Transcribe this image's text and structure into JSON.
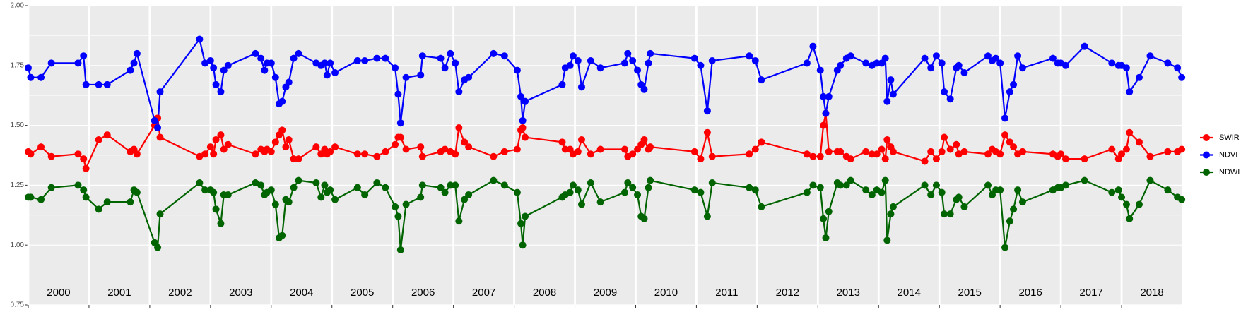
{
  "chart_data": {
    "type": "line",
    "legend": "right",
    "grid": true,
    "x": [
      2000.0,
      2000.04,
      2000.21,
      2000.38,
      2000.82,
      2000.91,
      2000.95,
      2001.16,
      2001.3,
      2001.68,
      2001.74,
      2001.79,
      2002.08,
      2002.13,
      2002.17,
      2002.82,
      2002.91,
      2003.0,
      2003.05,
      2003.09,
      2003.17,
      2003.22,
      2003.29,
      2003.74,
      2003.83,
      2003.89,
      2003.93,
      2004.0,
      2004.07,
      2004.13,
      2004.18,
      2004.24,
      2004.29,
      2004.37,
      2004.45,
      2004.74,
      2004.82,
      2004.88,
      2004.92,
      2004.97,
      2005.05,
      2005.42,
      2005.54,
      2005.74,
      2005.88,
      2006.04,
      2006.09,
      2006.13,
      2006.22,
      2006.46,
      2006.49,
      2006.79,
      2006.86,
      2006.95,
      2007.03,
      2007.09,
      2007.18,
      2007.25,
      2007.66,
      2007.84,
      2008.05,
      2008.11,
      2008.14,
      2008.18,
      2008.79,
      2008.84,
      2008.92,
      2008.97,
      2009.05,
      2009.11,
      2009.26,
      2009.42,
      2009.82,
      2009.87,
      2009.95,
      2010.03,
      2010.09,
      2010.14,
      2010.21,
      2010.24,
      2010.97,
      2011.07,
      2011.18,
      2011.26,
      2011.87,
      2011.97,
      2012.07,
      2012.82,
      2012.92,
      2013.04,
      2013.09,
      2013.13,
      2013.18,
      2013.32,
      2013.37,
      2013.47,
      2013.54,
      2013.79,
      2013.89,
      2013.97,
      2014.05,
      2014.11,
      2014.14,
      2014.2,
      2014.24,
      2014.76,
      2014.86,
      2014.95,
      2015.04,
      2015.08,
      2015.18,
      2015.28,
      2015.32,
      2015.41,
      2015.8,
      2015.87,
      2015.93,
      2016.0,
      2016.08,
      2016.16,
      2016.22,
      2016.29,
      2016.37,
      2016.87,
      2016.95,
      2017.0,
      2017.08,
      2017.39,
      2017.84,
      2017.95,
      2018.0,
      2018.08,
      2018.13,
      2018.29,
      2018.47,
      2018.76,
      2018.92,
      2018.99
    ],
    "series": [
      {
        "name": "SWIR",
        "color": "#ff0000",
        "values": [
          1.39,
          1.38,
          1.41,
          1.37,
          1.38,
          1.36,
          1.32,
          1.44,
          1.46,
          1.39,
          1.4,
          1.38,
          1.5,
          1.53,
          1.45,
          1.37,
          1.38,
          1.41,
          1.38,
          1.44,
          1.46,
          1.4,
          1.42,
          1.38,
          1.4,
          1.39,
          1.4,
          1.39,
          1.43,
          1.46,
          1.48,
          1.41,
          1.44,
          1.36,
          1.36,
          1.41,
          1.38,
          1.4,
          1.38,
          1.39,
          1.41,
          1.38,
          1.38,
          1.37,
          1.39,
          1.42,
          1.45,
          1.45,
          1.4,
          1.41,
          1.37,
          1.39,
          1.4,
          1.39,
          1.38,
          1.49,
          1.43,
          1.41,
          1.37,
          1.39,
          1.4,
          1.48,
          1.49,
          1.45,
          1.43,
          1.4,
          1.4,
          1.38,
          1.39,
          1.44,
          1.38,
          1.4,
          1.4,
          1.37,
          1.38,
          1.4,
          1.42,
          1.44,
          1.4,
          1.41,
          1.39,
          1.36,
          1.47,
          1.37,
          1.38,
          1.4,
          1.43,
          1.38,
          1.37,
          1.37,
          1.5,
          1.55,
          1.39,
          1.39,
          1.39,
          1.37,
          1.36,
          1.39,
          1.38,
          1.38,
          1.4,
          1.36,
          1.44,
          1.41,
          1.39,
          1.35,
          1.39,
          1.36,
          1.39,
          1.45,
          1.4,
          1.42,
          1.38,
          1.39,
          1.38,
          1.4,
          1.39,
          1.38,
          1.46,
          1.43,
          1.41,
          1.38,
          1.39,
          1.38,
          1.37,
          1.38,
          1.36,
          1.36,
          1.4,
          1.36,
          1.38,
          1.4,
          1.47,
          1.43,
          1.37,
          1.39,
          1.39,
          1.4
        ]
      },
      {
        "name": "NDVI",
        "color": "#0000ff",
        "values": [
          1.74,
          1.7,
          1.7,
          1.76,
          1.76,
          1.79,
          1.67,
          1.67,
          1.67,
          1.73,
          1.76,
          1.8,
          1.52,
          1.49,
          1.64,
          1.86,
          1.76,
          1.77,
          1.74,
          1.67,
          1.64,
          1.73,
          1.75,
          1.8,
          1.78,
          1.73,
          1.76,
          1.76,
          1.7,
          1.59,
          1.6,
          1.66,
          1.68,
          1.78,
          1.8,
          1.76,
          1.75,
          1.76,
          1.71,
          1.76,
          1.72,
          1.77,
          1.77,
          1.78,
          1.78,
          1.74,
          1.63,
          1.51,
          1.7,
          1.71,
          1.79,
          1.78,
          1.74,
          1.8,
          1.76,
          1.64,
          1.69,
          1.7,
          1.8,
          1.79,
          1.73,
          1.62,
          1.52,
          1.6,
          1.67,
          1.74,
          1.75,
          1.79,
          1.77,
          1.66,
          1.77,
          1.74,
          1.76,
          1.8,
          1.77,
          1.73,
          1.67,
          1.65,
          1.76,
          1.8,
          1.78,
          1.75,
          1.56,
          1.77,
          1.79,
          1.77,
          1.69,
          1.76,
          1.83,
          1.73,
          1.62,
          1.55,
          1.62,
          1.73,
          1.75,
          1.78,
          1.79,
          1.76,
          1.75,
          1.76,
          1.76,
          1.78,
          1.6,
          1.69,
          1.63,
          1.78,
          1.74,
          1.79,
          1.76,
          1.64,
          1.61,
          1.74,
          1.75,
          1.72,
          1.79,
          1.77,
          1.78,
          1.76,
          1.53,
          1.64,
          1.67,
          1.79,
          1.74,
          1.78,
          1.76,
          1.76,
          1.75,
          1.83,
          1.76,
          1.75,
          1.75,
          1.74,
          1.64,
          1.7,
          1.79,
          1.76,
          1.74,
          1.7
        ]
      },
      {
        "name": "NDWI",
        "color": "#006400",
        "values": [
          1.2,
          1.2,
          1.19,
          1.24,
          1.25,
          1.23,
          1.2,
          1.15,
          1.18,
          1.18,
          1.23,
          1.22,
          1.01,
          0.99,
          1.13,
          1.26,
          1.23,
          1.23,
          1.22,
          1.15,
          1.09,
          1.21,
          1.21,
          1.26,
          1.25,
          1.21,
          1.22,
          1.23,
          1.17,
          1.03,
          1.04,
          1.19,
          1.18,
          1.24,
          1.27,
          1.26,
          1.2,
          1.25,
          1.22,
          1.23,
          1.19,
          1.24,
          1.21,
          1.26,
          1.24,
          1.16,
          1.12,
          0.98,
          1.17,
          1.2,
          1.25,
          1.24,
          1.22,
          1.25,
          1.25,
          1.1,
          1.19,
          1.21,
          1.27,
          1.25,
          1.22,
          1.09,
          1.0,
          1.12,
          1.2,
          1.21,
          1.22,
          1.25,
          1.23,
          1.17,
          1.26,
          1.18,
          1.22,
          1.26,
          1.24,
          1.21,
          1.12,
          1.11,
          1.24,
          1.27,
          1.23,
          1.22,
          1.12,
          1.26,
          1.24,
          1.23,
          1.16,
          1.22,
          1.25,
          1.24,
          1.11,
          1.03,
          1.14,
          1.26,
          1.25,
          1.25,
          1.27,
          1.23,
          1.21,
          1.23,
          1.22,
          1.27,
          1.02,
          1.13,
          1.16,
          1.25,
          1.21,
          1.25,
          1.22,
          1.13,
          1.13,
          1.19,
          1.2,
          1.16,
          1.25,
          1.21,
          1.23,
          1.23,
          0.99,
          1.1,
          1.15,
          1.23,
          1.18,
          1.23,
          1.24,
          1.24,
          1.25,
          1.27,
          1.22,
          1.23,
          1.2,
          1.17,
          1.11,
          1.17,
          1.27,
          1.23,
          1.2,
          1.19
        ]
      }
    ],
    "xlim": [
      2000,
      2019
    ],
    "xticks": [
      {
        "value": 2000,
        "label": "2000"
      },
      {
        "value": 2001,
        "label": "2001"
      },
      {
        "value": 2002,
        "label": "2002"
      },
      {
        "value": 2003,
        "label": "2003"
      },
      {
        "value": 2004,
        "label": "2004"
      },
      {
        "value": 2005,
        "label": "2005"
      },
      {
        "value": 2006,
        "label": "2006"
      },
      {
        "value": 2007,
        "label": "2007"
      },
      {
        "value": 2008,
        "label": "2008"
      },
      {
        "value": 2009,
        "label": "2009"
      },
      {
        "value": 2010,
        "label": "2010"
      },
      {
        "value": 2011,
        "label": "2011"
      },
      {
        "value": 2012,
        "label": "2012"
      },
      {
        "value": 2013,
        "label": "2013"
      },
      {
        "value": 2014,
        "label": "2014"
      },
      {
        "value": 2015,
        "label": "2015"
      },
      {
        "value": 2016,
        "label": "2016"
      },
      {
        "value": 2017,
        "label": "2017"
      },
      {
        "value": 2018,
        "label": "2018"
      }
    ],
    "ylim": [
      0.75,
      2.0
    ],
    "yticks": [
      {
        "value": 0.75,
        "label": "0.75"
      },
      {
        "value": 1.0,
        "label": "1.00"
      },
      {
        "value": 1.25,
        "label": "1.25"
      },
      {
        "value": 1.5,
        "label": "1.50"
      },
      {
        "value": 1.75,
        "label": "1.75"
      },
      {
        "value": 2.0,
        "label": "2.00"
      }
    ]
  }
}
